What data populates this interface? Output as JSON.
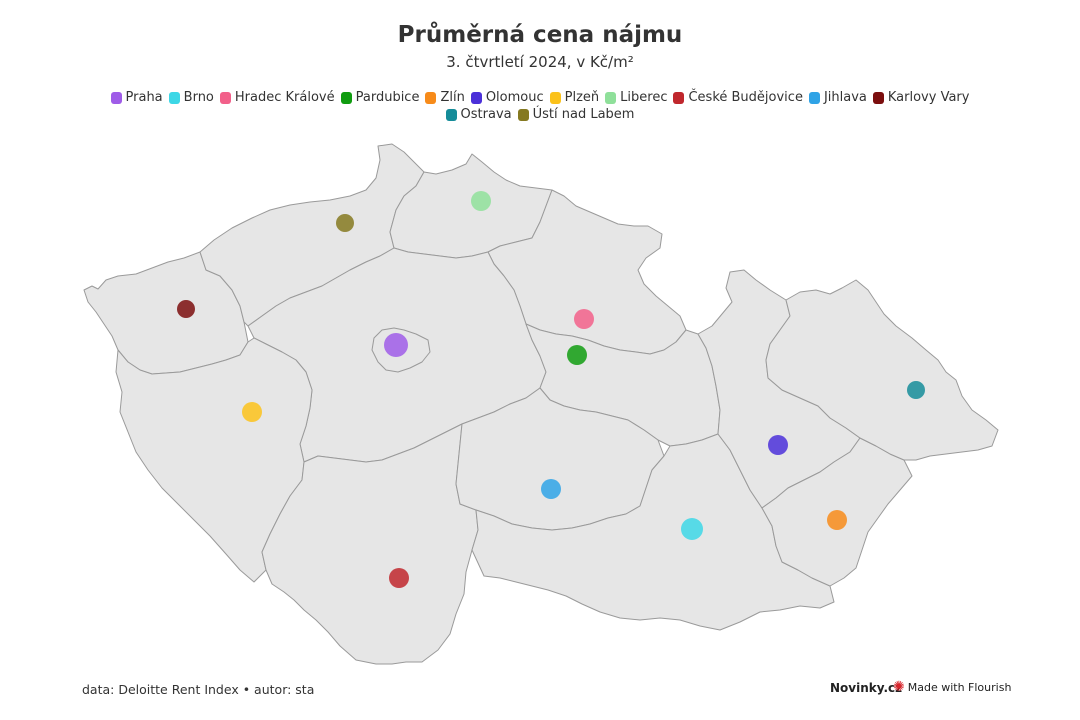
{
  "title": "Průměrná cena nájmu",
  "subtitle": "3. čtvrtletí 2024, v Kč/m²",
  "legend": [
    {
      "label": "Praha",
      "color": "#9f5ce8"
    },
    {
      "label": "Brno",
      "color": "#3dd7e6"
    },
    {
      "label": "Hradec Králové",
      "color": "#f2608a"
    },
    {
      "label": "Pardubice",
      "color": "#109c10"
    },
    {
      "label": "Zlín",
      "color": "#f78b1a"
    },
    {
      "label": "Olomouc",
      "color": "#4b30d9"
    },
    {
      "label": "Plzeň",
      "color": "#fbc21b"
    },
    {
      "label": "Liberec",
      "color": "#8fe09a"
    },
    {
      "label": "České Budějovice",
      "color": "#c0272d"
    },
    {
      "label": "Jihlava",
      "color": "#2fa3e6"
    },
    {
      "label": "Karlovy Vary",
      "color": "#7b0e0e"
    },
    {
      "label": "Ostrava",
      "color": "#158c99"
    },
    {
      "label": "Ústí nad Labem",
      "color": "#857920"
    }
  ],
  "source": "data: Deloitte Rent Index • autor: sta",
  "brand": "Novinky.cz",
  "made_with": "Made with Flourish",
  "icons": {
    "flourish": "flourish-logo-icon"
  }
}
